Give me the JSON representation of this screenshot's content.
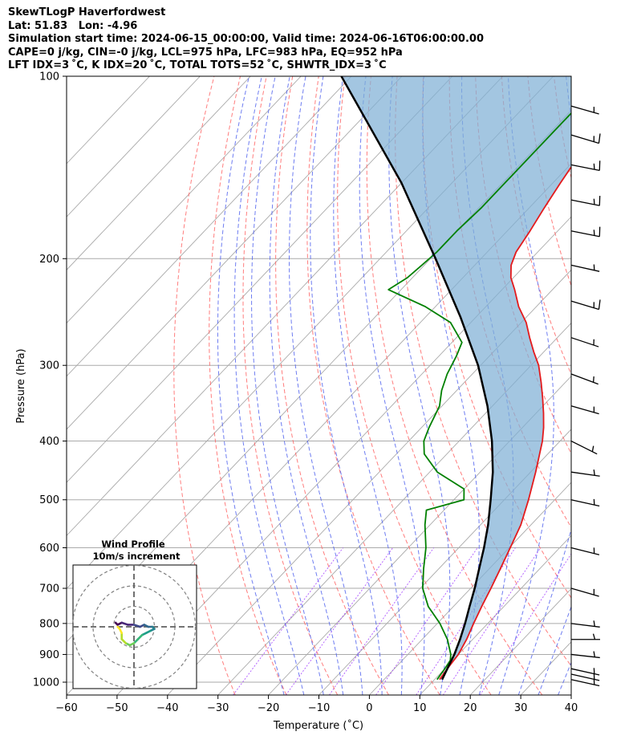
{
  "header": {
    "title": "SkewTLogP Haverfordwest",
    "location": "Lat: 51.83   Lon: -4.96",
    "times": "Simulation start time: 2024-06-15_00:00:00, Valid time: 2024-06-16T06:00:00.00",
    "params": "CAPE=0 j/kg, CIN=-0 j/kg, LCL=975 hPa, LFC=983 hPa, EQ=952 hPa",
    "indices": "LFT IDX=3 ˚C, K IDX=20 ˚C, TOTAL TOTS=52 ˚C, SHWTR_IDX=3 ˚C"
  },
  "colors": {
    "temperature": "#e41a1c",
    "dewpoint": "#008000",
    "parcel": "#000000",
    "cape_fill": "#7fb0d5",
    "dry_adiabats": "#ff6666",
    "moist_adiabats": "#5566ee",
    "mixing_ratio": "#9b30ff",
    "isotherms": "#aaaaaa",
    "isobars": "#aaaaaa"
  },
  "chart_data": {
    "type": "skew-t log-p",
    "xlabel": "Temperature (˚C)",
    "ylabel": "Pressure (hPa)",
    "xlim": [
      -60,
      40
    ],
    "ylim": [
      1050,
      100
    ],
    "y_scale": "log",
    "x_ticks": [
      "−60",
      "−50",
      "−40",
      "−30",
      "−20",
      "−10",
      "0",
      "10",
      "20",
      "30",
      "40"
    ],
    "x_tick_values": [
      -60,
      -50,
      -40,
      -30,
      -20,
      -10,
      0,
      10,
      20,
      30,
      40
    ],
    "y_ticks": [
      "1000",
      "900",
      "800",
      "700",
      "600",
      "500",
      "400",
      "300",
      "200",
      "100"
    ],
    "y_tick_values": [
      1000,
      900,
      800,
      700,
      600,
      500,
      400,
      300,
      200,
      100
    ],
    "grid": true,
    "series": [
      {
        "key": "temperature",
        "pressure": [
          990,
          950,
          900,
          850,
          800,
          750,
          700,
          650,
          600,
          550,
          500,
          450,
          400,
          380,
          360,
          340,
          320,
          300,
          285,
          270,
          255,
          240,
          225,
          215,
          205,
          195,
          180,
          165,
          150,
          135,
          120,
          110,
          100
        ],
        "temperature": [
          11,
          10.5,
          10,
          8.8,
          7.2,
          5.6,
          4,
          2.2,
          0.2,
          -2,
          -5.2,
          -9,
          -13.5,
          -15.8,
          -18.5,
          -21.5,
          -24.8,
          -28.5,
          -32,
          -35.5,
          -39,
          -43.5,
          -47.5,
          -50.5,
          -52.8,
          -54.3,
          -55.5,
          -57,
          -58.5,
          -60,
          -61.5,
          -62.5,
          -63.5
        ]
      },
      {
        "key": "dewpoint",
        "pressure": [
          990,
          950,
          920,
          900,
          850,
          800,
          750,
          700,
          650,
          600,
          550,
          520,
          500,
          480,
          450,
          420,
          400,
          380,
          350,
          330,
          310,
          290,
          275,
          255,
          240,
          225,
          215,
          205,
          195,
          180,
          165,
          150,
          135,
          120,
          100
        ],
        "temperature": [
          10.5,
          10,
          9.5,
          8.5,
          5,
          0.5,
          -5,
          -9.5,
          -13,
          -16.5,
          -21,
          -23.5,
          -18,
          -20,
          -28.5,
          -34.5,
          -37,
          -38.5,
          -40.5,
          -43,
          -45,
          -46.5,
          -48,
          -54,
          -62,
          -72.5,
          -71,
          -70.5,
          -70,
          -70,
          -69.5,
          -69.5,
          -69.5,
          -69.5,
          -69.5
        ]
      },
      {
        "key": "parcel",
        "pressure": [
          990,
          950,
          900,
          850,
          800,
          750,
          700,
          650,
          600,
          550,
          500,
          450,
          400,
          350,
          300,
          250,
          200,
          150,
          100
        ],
        "temperature": [
          11.5,
          10.5,
          9.2,
          7.5,
          5.5,
          3.2,
          0.8,
          -2,
          -5,
          -8.5,
          -12.7,
          -17.5,
          -23.5,
          -31,
          -40.5,
          -53,
          -69,
          -90,
          -122
        ]
      }
    ],
    "winds": [
      {
        "p": 990,
        "u": -9,
        "v": 2
      },
      {
        "p": 970,
        "u": -9,
        "v": 2
      },
      {
        "p": 950,
        "u": -9,
        "v": 2
      },
      {
        "p": 900,
        "u": -9,
        "v": 1
      },
      {
        "p": 850,
        "u": -8,
        "v": 0
      },
      {
        "p": 800,
        "u": -8,
        "v": 1
      },
      {
        "p": 700,
        "u": -7,
        "v": 2
      },
      {
        "p": 600,
        "u": -8,
        "v": 2
      },
      {
        "p": 500,
        "u": -9,
        "v": 2
      },
      {
        "p": 450,
        "u": -7,
        "v": 1
      },
      {
        "p": 400,
        "u": -6,
        "v": 3
      },
      {
        "p": 350,
        "u": -7,
        "v": 2
      },
      {
        "p": 310,
        "u": -8,
        "v": 3
      },
      {
        "p": 270,
        "u": -9,
        "v": 3
      },
      {
        "p": 235,
        "u": -10,
        "v": 3
      },
      {
        "p": 205,
        "u": -9,
        "v": 2
      },
      {
        "p": 180,
        "u": -10,
        "v": 2
      },
      {
        "p": 160,
        "u": -10,
        "v": 2
      },
      {
        "p": 140,
        "u": -10,
        "v": 2
      },
      {
        "p": 125,
        "u": -10,
        "v": 3
      },
      {
        "p": 112,
        "u": -7,
        "v": 2
      }
    ],
    "hodograph": {
      "title": "Wind Profile",
      "subtitle": "10m/s increment",
      "rings": 3,
      "points": [
        [
          -9,
          2
        ],
        [
          -8,
          1
        ],
        [
          -6,
          2
        ],
        [
          -3,
          1
        ],
        [
          0,
          1
        ],
        [
          3,
          0
        ],
        [
          5,
          1
        ],
        [
          7,
          0
        ],
        [
          9,
          0
        ],
        [
          10,
          -1
        ],
        [
          8,
          -2
        ],
        [
          6,
          -3
        ],
        [
          4,
          -4
        ],
        [
          2,
          -6
        ],
        [
          0,
          -8
        ],
        [
          -2,
          -9
        ],
        [
          -4,
          -8
        ],
        [
          -6,
          -6
        ],
        [
          -6,
          -3
        ],
        [
          -7,
          -1
        ],
        [
          -8,
          0
        ]
      ]
    }
  }
}
